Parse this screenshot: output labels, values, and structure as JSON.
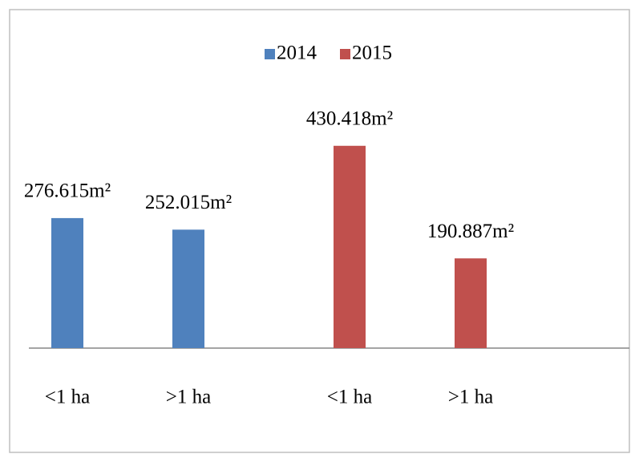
{
  "chart_data": {
    "type": "bar",
    "categories": [
      "<1 ha",
      ">1 ha",
      "<1 ha",
      ">1 ha"
    ],
    "series": [
      {
        "name": "2014",
        "color": "#4f81bd",
        "values": [
          276.615,
          252.015,
          null,
          null
        ],
        "value_labels": [
          "276.615m²",
          "252.015m²",
          null,
          null
        ]
      },
      {
        "name": "2015",
        "color": "#c0504d",
        "values": [
          null,
          null,
          430.418,
          190.887
        ],
        "value_labels": [
          null,
          null,
          "430.418m²",
          "190.887m²"
        ]
      }
    ],
    "ylim": [
      0,
      500
    ],
    "legend": "top"
  }
}
